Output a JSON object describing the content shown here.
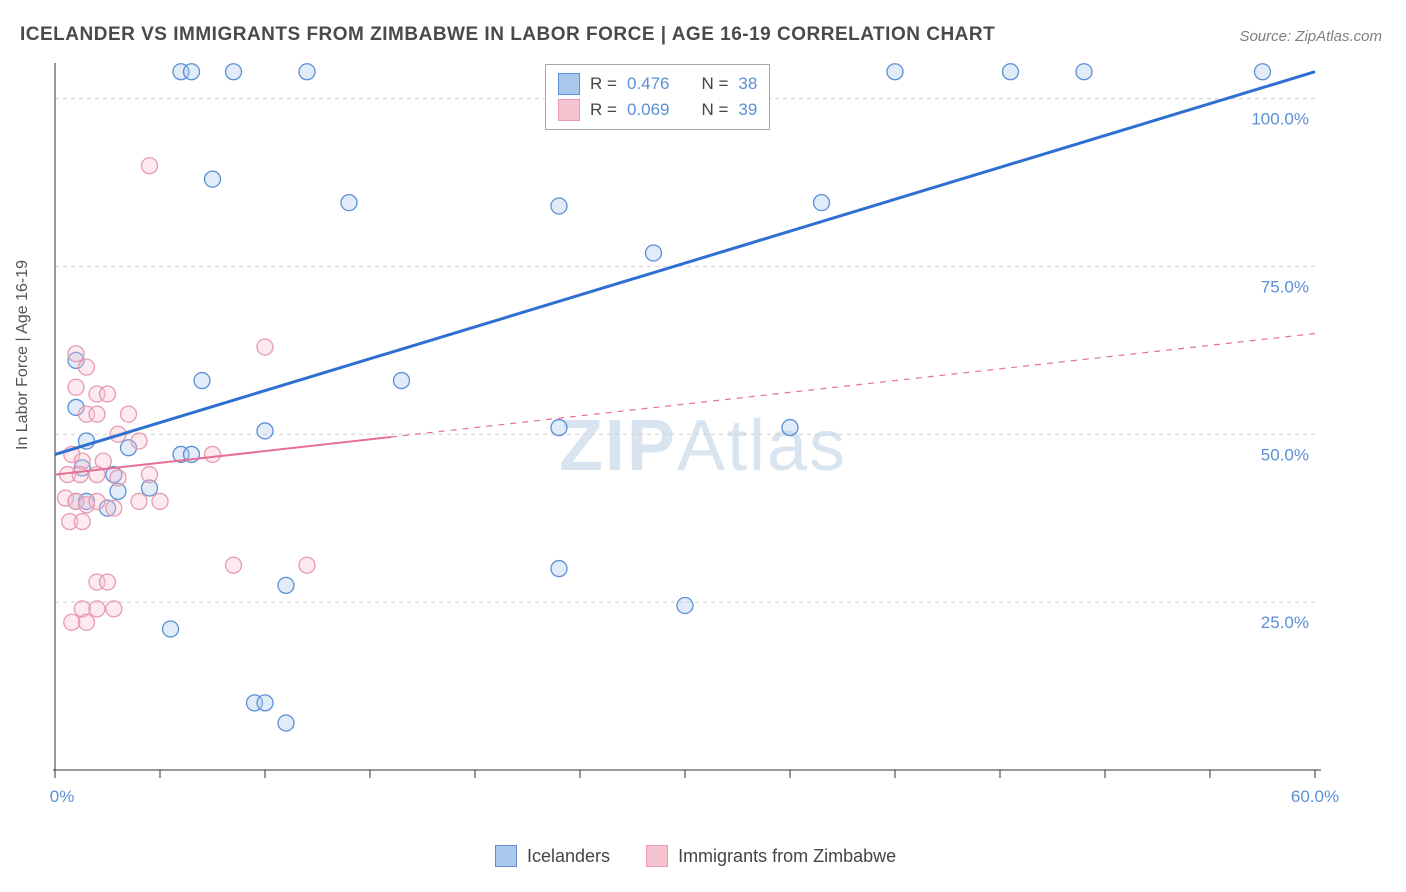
{
  "title": "ICELANDER VS IMMIGRANTS FROM ZIMBABWE IN LABOR FORCE | AGE 16-19 CORRELATION CHART",
  "source": "Source: ZipAtlas.com",
  "ylabel": "In Labor Force | Age 16-19",
  "watermark_bold": "ZIP",
  "watermark_light": "Atlas",
  "chart": {
    "type": "scatter",
    "xlim": [
      0,
      60
    ],
    "ylim": [
      0,
      105
    ],
    "xtick_positions": [
      0,
      5,
      10,
      15,
      20,
      25,
      30,
      35,
      40,
      45,
      50,
      55,
      60
    ],
    "xtick_labels": {
      "0": "0.0%",
      "60": "60.0%"
    },
    "ytick_positions": [
      25,
      50,
      75,
      100
    ],
    "ytick_labels": {
      "25": "25.0%",
      "50": "50.0%",
      "75": "75.0%",
      "100": "100.0%"
    },
    "grid_show_y": true,
    "grid_color": "#d0d0d0",
    "background_color": "#ffffff",
    "marker_radius": 8,
    "marker_fill_opacity": 0.35,
    "marker_stroke_width": 1.3,
    "series": [
      {
        "name": "Icelanders",
        "color_fill": "#a9c8ec",
        "color_stroke": "#5b8fd6",
        "regression": {
          "x1": 0,
          "y1": 47,
          "x2": 60,
          "y2": 104,
          "solid_until_x": 60,
          "stroke": "#2f6fd0",
          "stroke_width": 3
        },
        "R": "0.476",
        "N": "38",
        "points": [
          [
            6.0,
            104
          ],
          [
            6.5,
            104
          ],
          [
            8.5,
            104
          ],
          [
            12.0,
            104
          ],
          [
            40.0,
            104
          ],
          [
            45.5,
            104
          ],
          [
            49.0,
            104
          ],
          [
            57.5,
            104
          ],
          [
            7.5,
            88
          ],
          [
            14.0,
            84.5
          ],
          [
            24.0,
            84
          ],
          [
            36.5,
            84.5
          ],
          [
            28.5,
            77
          ],
          [
            1.0,
            61
          ],
          [
            7.0,
            58
          ],
          [
            16.5,
            58
          ],
          [
            1.0,
            54
          ],
          [
            1.5,
            49
          ],
          [
            3.5,
            48
          ],
          [
            6.0,
            47
          ],
          [
            6.5,
            47
          ],
          [
            10.0,
            50.5
          ],
          [
            24.0,
            51
          ],
          [
            35.0,
            51
          ],
          [
            1.3,
            45
          ],
          [
            2.8,
            44
          ],
          [
            1.0,
            40
          ],
          [
            1.5,
            40
          ],
          [
            2.5,
            39
          ],
          [
            3.0,
            41.5
          ],
          [
            4.5,
            42
          ],
          [
            11.0,
            27.5
          ],
          [
            24.0,
            30
          ],
          [
            30.0,
            24.5
          ],
          [
            5.5,
            21
          ],
          [
            9.5,
            10
          ],
          [
            10.0,
            10
          ],
          [
            11.0,
            7
          ]
        ]
      },
      {
        "name": "Immigrants from Zimbabwe",
        "color_fill": "#f6c4d0",
        "color_stroke": "#e89ab0",
        "regression": {
          "x1": 0,
          "y1": 44,
          "x2": 60,
          "y2": 65,
          "solid_until_x": 16,
          "stroke": "#e76f95",
          "stroke_width": 2
        },
        "R": "0.069",
        "N": "39",
        "points": [
          [
            4.5,
            90
          ],
          [
            10.0,
            63
          ],
          [
            1.0,
            62
          ],
          [
            1.5,
            60
          ],
          [
            1.0,
            57
          ],
          [
            2.0,
            56
          ],
          [
            2.5,
            56
          ],
          [
            1.5,
            53
          ],
          [
            2.0,
            53
          ],
          [
            3.5,
            53
          ],
          [
            3.0,
            50
          ],
          [
            4.0,
            49
          ],
          [
            0.8,
            47
          ],
          [
            1.3,
            46
          ],
          [
            2.3,
            46
          ],
          [
            7.5,
            47
          ],
          [
            0.6,
            44
          ],
          [
            1.2,
            44
          ],
          [
            2.0,
            44
          ],
          [
            3.0,
            43.5
          ],
          [
            4.5,
            44
          ],
          [
            0.5,
            40.5
          ],
          [
            1.0,
            40
          ],
          [
            1.5,
            39.5
          ],
          [
            2.0,
            40
          ],
          [
            2.8,
            39
          ],
          [
            4.0,
            40
          ],
          [
            5.0,
            40
          ],
          [
            0.7,
            37
          ],
          [
            1.3,
            37
          ],
          [
            8.5,
            30.5
          ],
          [
            12.0,
            30.5
          ],
          [
            2.0,
            28
          ],
          [
            2.5,
            28
          ],
          [
            1.3,
            24
          ],
          [
            2.0,
            24
          ],
          [
            2.8,
            24
          ],
          [
            0.8,
            22
          ],
          [
            1.5,
            22
          ]
        ]
      }
    ]
  },
  "legend_top": {
    "rows": [
      {
        "swatch_fill": "#a9c8ec",
        "swatch_stroke": "#5b8fd6",
        "r_label": "R  =",
        "r_val": "0.476",
        "n_label": "N  =",
        "n_val": "38"
      },
      {
        "swatch_fill": "#f6c4d0",
        "swatch_stroke": "#e89ab0",
        "r_label": "R  =",
        "r_val": "0.069",
        "n_label": "N  =",
        "n_val": "39"
      }
    ]
  },
  "legend_bottom": {
    "items": [
      {
        "swatch_fill": "#a9c8ec",
        "swatch_stroke": "#5b8fd6",
        "label": "Icelanders"
      },
      {
        "swatch_fill": "#f6c4d0",
        "swatch_stroke": "#e89ab0",
        "label": "Immigrants from Zimbabwe"
      }
    ]
  }
}
